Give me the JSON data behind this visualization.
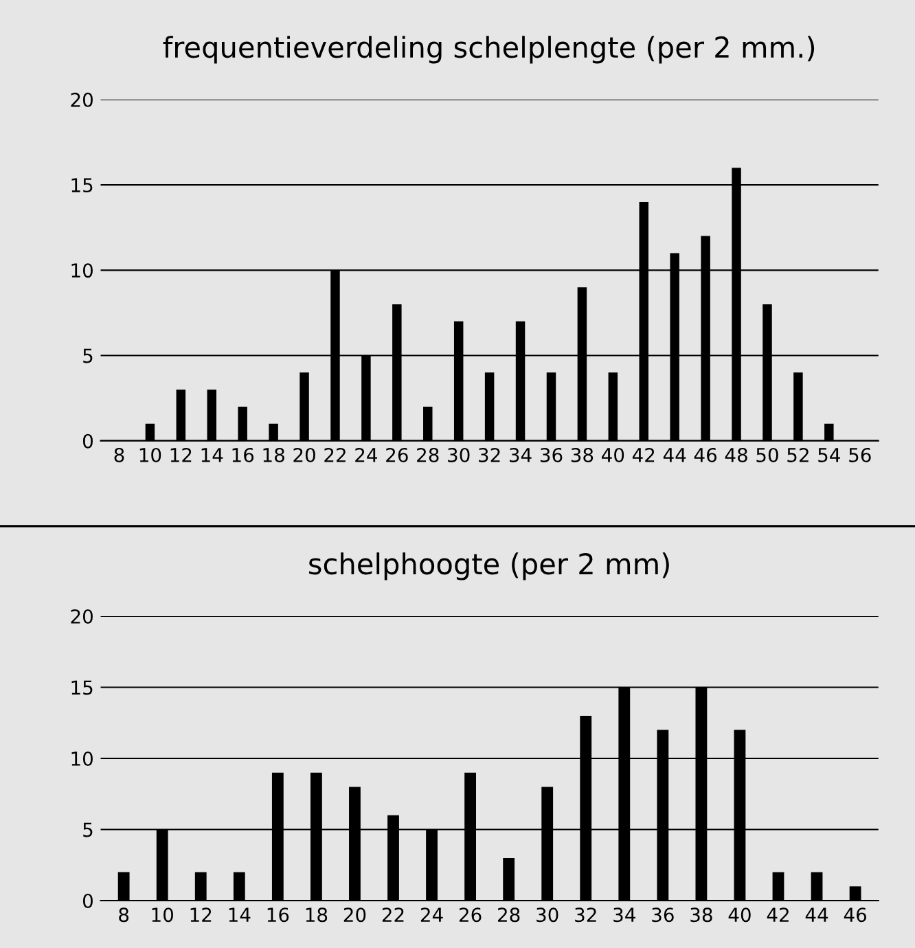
{
  "chart_data": [
    {
      "type": "bar",
      "title": "frequentieverdeling schelplengte (per 2 mm.)",
      "categories": [
        "8",
        "10",
        "12",
        "14",
        "16",
        "18",
        "20",
        "22",
        "24",
        "26",
        "28",
        "30",
        "32",
        "34",
        "36",
        "38",
        "40",
        "42",
        "44",
        "46",
        "48",
        "50",
        "52",
        "54",
        "56"
      ],
      "values": [
        null,
        1,
        3,
        3,
        2,
        1,
        4,
        10,
        5,
        8,
        2,
        7,
        4,
        7,
        4,
        9,
        4,
        14,
        11,
        12,
        16,
        8,
        4,
        1,
        null
      ],
      "color": "#000000",
      "ylim": [
        0,
        20
      ],
      "yticks": [
        0,
        5,
        10,
        15,
        20
      ],
      "grid": "y"
    },
    {
      "type": "bar",
      "title": "schelphoogte (per 2 mm)",
      "categories": [
        "8",
        "10",
        "12",
        "14",
        "16",
        "18",
        "20",
        "22",
        "24",
        "26",
        "28",
        "30",
        "32",
        "34",
        "36",
        "38",
        "40",
        "42",
        "44",
        "46"
      ],
      "values": [
        2,
        5,
        2,
        2,
        9,
        9,
        8,
        6,
        5,
        9,
        3,
        8,
        13,
        15,
        12,
        15,
        12,
        2,
        2,
        1
      ],
      "color": "#000000",
      "ylim": [
        0,
        20
      ],
      "yticks": [
        0,
        5,
        10,
        15,
        20
      ],
      "grid": "y"
    }
  ]
}
